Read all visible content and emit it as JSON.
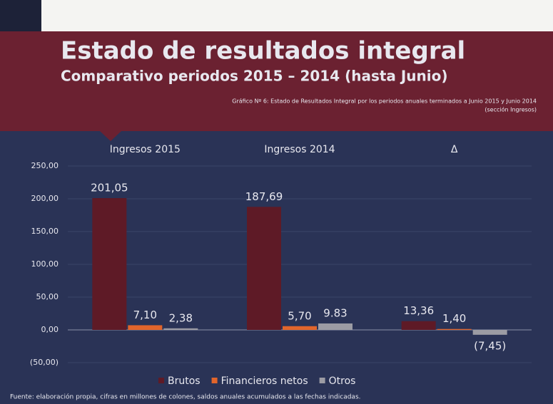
{
  "chart_data": {
    "type": "bar",
    "title": "Estado de resultados integral",
    "subtitle": "Comparativo periodos 2015 – 2014 (hasta Junio)",
    "caption": [
      "Gráfico Nº 6: Estado de Resultados Integral por los periodos anuales terminados a Junio 2015 y Junio 2014",
      "(sección Ingresos)"
    ],
    "source": "Fuente: elaboración propia, cifras en millones de colones, saldos anuales acumulados a las fechas indicadas.",
    "categories": [
      "Ingresos 2015",
      "Ingresos 2014",
      "Δ"
    ],
    "series": [
      {
        "name": "Brutos",
        "color": "#5e1a26",
        "values": [
          201.05,
          187.69,
          13.36
        ],
        "value_labels": [
          "201,05",
          "187,69",
          "13,36"
        ]
      },
      {
        "name": "Financieros netos",
        "color": "#e2652b",
        "values": [
          7.1,
          5.7,
          1.4
        ],
        "value_labels": [
          "7,10",
          "5,70",
          "1,40"
        ]
      },
      {
        "name": "Otros",
        "color": "#9c9ca4",
        "values": [
          2.38,
          9.83,
          -7.45
        ],
        "value_labels": [
          "2,38",
          "9.83",
          "(7,45)"
        ]
      }
    ],
    "ylim": [
      -50,
      250
    ],
    "yticks": [
      {
        "value": 250,
        "label": "250,00"
      },
      {
        "value": 200,
        "label": "200,00"
      },
      {
        "value": 150,
        "label": "150,00"
      },
      {
        "value": 100,
        "label": "100,00"
      },
      {
        "value": 50,
        "label": "50,00"
      },
      {
        "value": 0,
        "label": "0,00"
      },
      {
        "value": -50,
        "label": "(50,00)"
      }
    ],
    "grid": true,
    "legend": "bottom"
  }
}
